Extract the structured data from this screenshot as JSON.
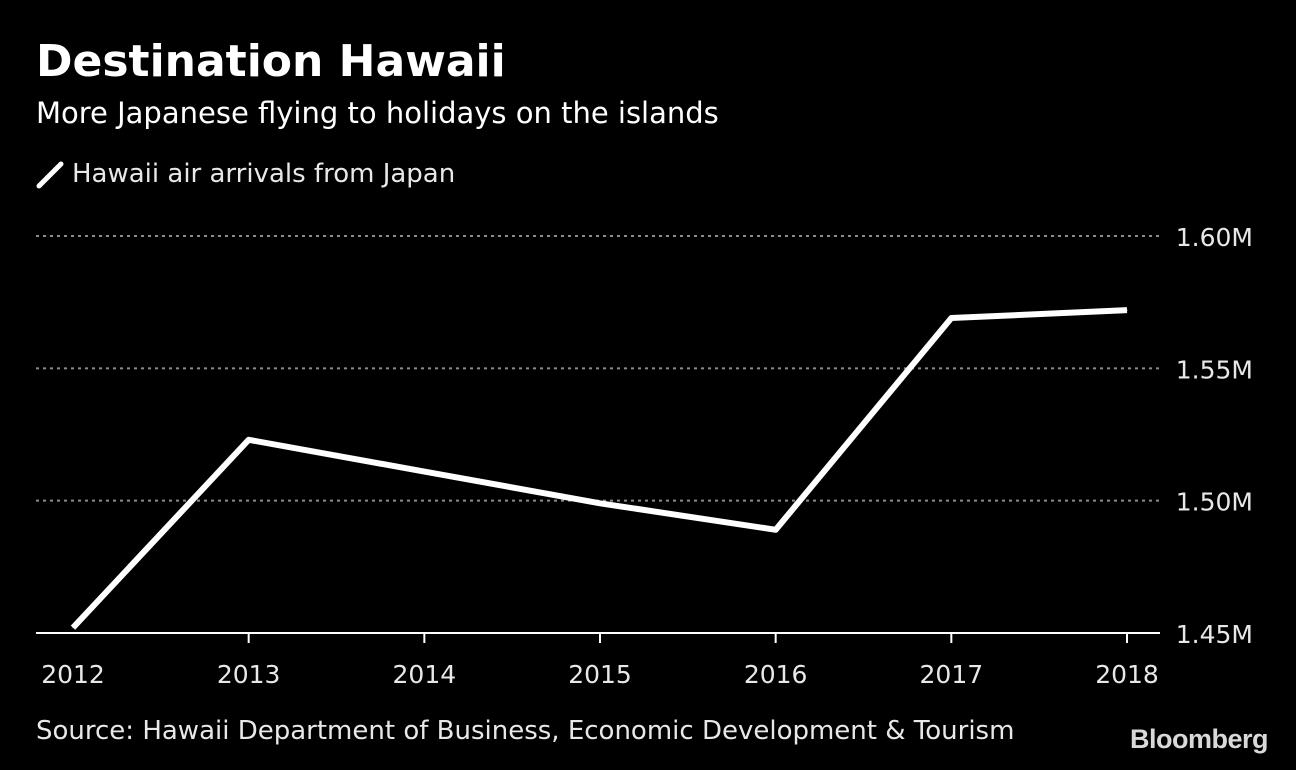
{
  "header": {
    "title": "Destination Hawaii",
    "subtitle": "More Japanese flying to holidays on the islands"
  },
  "legend": {
    "items": [
      {
        "label": "Hawaii air arrivals from Japan",
        "color": "#ffffff",
        "icon": "line-swatch-icon"
      }
    ]
  },
  "chart_data": {
    "type": "line",
    "title": "Destination Hawaii",
    "subtitle": "More Japanese flying to holidays on the islands",
    "x": [
      "2012",
      "2013",
      "2014",
      "2015",
      "2016",
      "2017",
      "2018"
    ],
    "series": [
      {
        "name": "Hawaii air arrivals from Japan",
        "values": [
          1.452,
          1.523,
          1.511,
          1.499,
          1.489,
          1.569,
          1.572
        ],
        "color": "#ffffff"
      }
    ],
    "y_ticks": [
      {
        "value": 1.45,
        "label": "1.45M"
      },
      {
        "value": 1.5,
        "label": "1.50M"
      },
      {
        "value": 1.55,
        "label": "1.55M"
      },
      {
        "value": 1.6,
        "label": "1.60M"
      }
    ],
    "ylim": [
      1.45,
      1.6
    ],
    "y_axis_position": "right",
    "grid": "dotted horizontal",
    "legend_position": "top-left",
    "xlabel": "",
    "ylabel": "",
    "background": "#000000",
    "gridline_color": "#8c8c8c",
    "axis_color": "#ffffff"
  },
  "footer": {
    "source": "Source: Hawaii Department of Business, Economic Development & Tourism",
    "brand": "Bloomberg"
  }
}
